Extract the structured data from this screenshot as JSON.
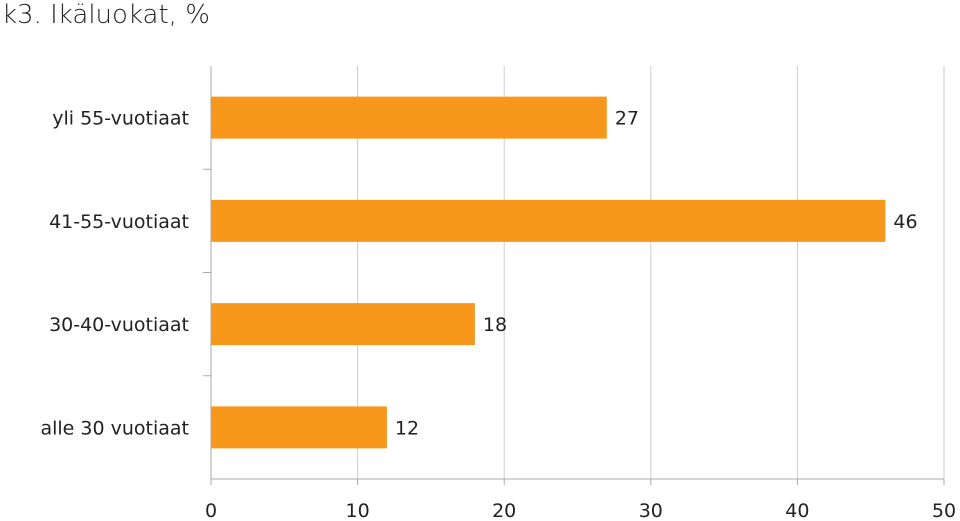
{
  "chart_data": {
    "type": "bar",
    "orientation": "horizontal",
    "title": "k3. Ikäluokat, %",
    "categories": [
      "yli 55-vuotiaat",
      "41-55-vuotiaat",
      "30-40-vuotiaat",
      "alle 30 vuotiaat"
    ],
    "values": [
      27,
      46,
      18,
      12
    ],
    "xlim": [
      0,
      50
    ],
    "xticks": [
      0,
      10,
      20,
      30,
      40,
      50
    ],
    "grid": true,
    "bar_color": "#F7981D",
    "xlabel": "",
    "ylabel": ""
  }
}
